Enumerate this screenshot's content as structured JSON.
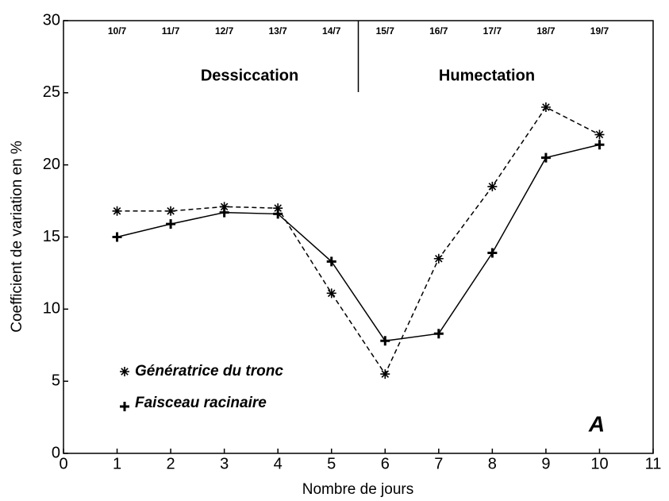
{
  "chart_data": {
    "type": "line",
    "xlabel": "Nombre de jours",
    "ylabel": "Coefficient de variation en %",
    "x": [
      1,
      2,
      3,
      4,
      5,
      6,
      7,
      8,
      9,
      10
    ],
    "top_labels": [
      "10/7",
      "11/7",
      "12/7",
      "13/7",
      "14/7",
      "15/7",
      "16/7",
      "17/7",
      "18/7",
      "19/7"
    ],
    "phases": [
      "Dessiccation",
      "Humectation"
    ],
    "panel_label": "A",
    "series": [
      {
        "name": "Génératrice du tronc",
        "color": "#000000",
        "marker": "asterisk",
        "dashed": true,
        "values": [
          16.8,
          16.8,
          17.1,
          17.0,
          11.1,
          5.5,
          13.5,
          18.5,
          24.0,
          22.1
        ]
      },
      {
        "name": "Faisceau racinaire",
        "color": "#000000",
        "marker": "plus",
        "dashed": false,
        "values": [
          15.0,
          15.9,
          16.7,
          16.6,
          13.3,
          7.8,
          8.3,
          13.9,
          20.5,
          21.4
        ]
      }
    ],
    "xlim": [
      0,
      11
    ],
    "xticks": [
      0,
      1,
      2,
      3,
      4,
      5,
      6,
      7,
      8,
      9,
      10,
      11
    ],
    "ylim": [
      0,
      30
    ],
    "yticks": [
      0,
      5,
      10,
      15,
      20,
      25,
      30
    ],
    "legend": "lower left"
  }
}
